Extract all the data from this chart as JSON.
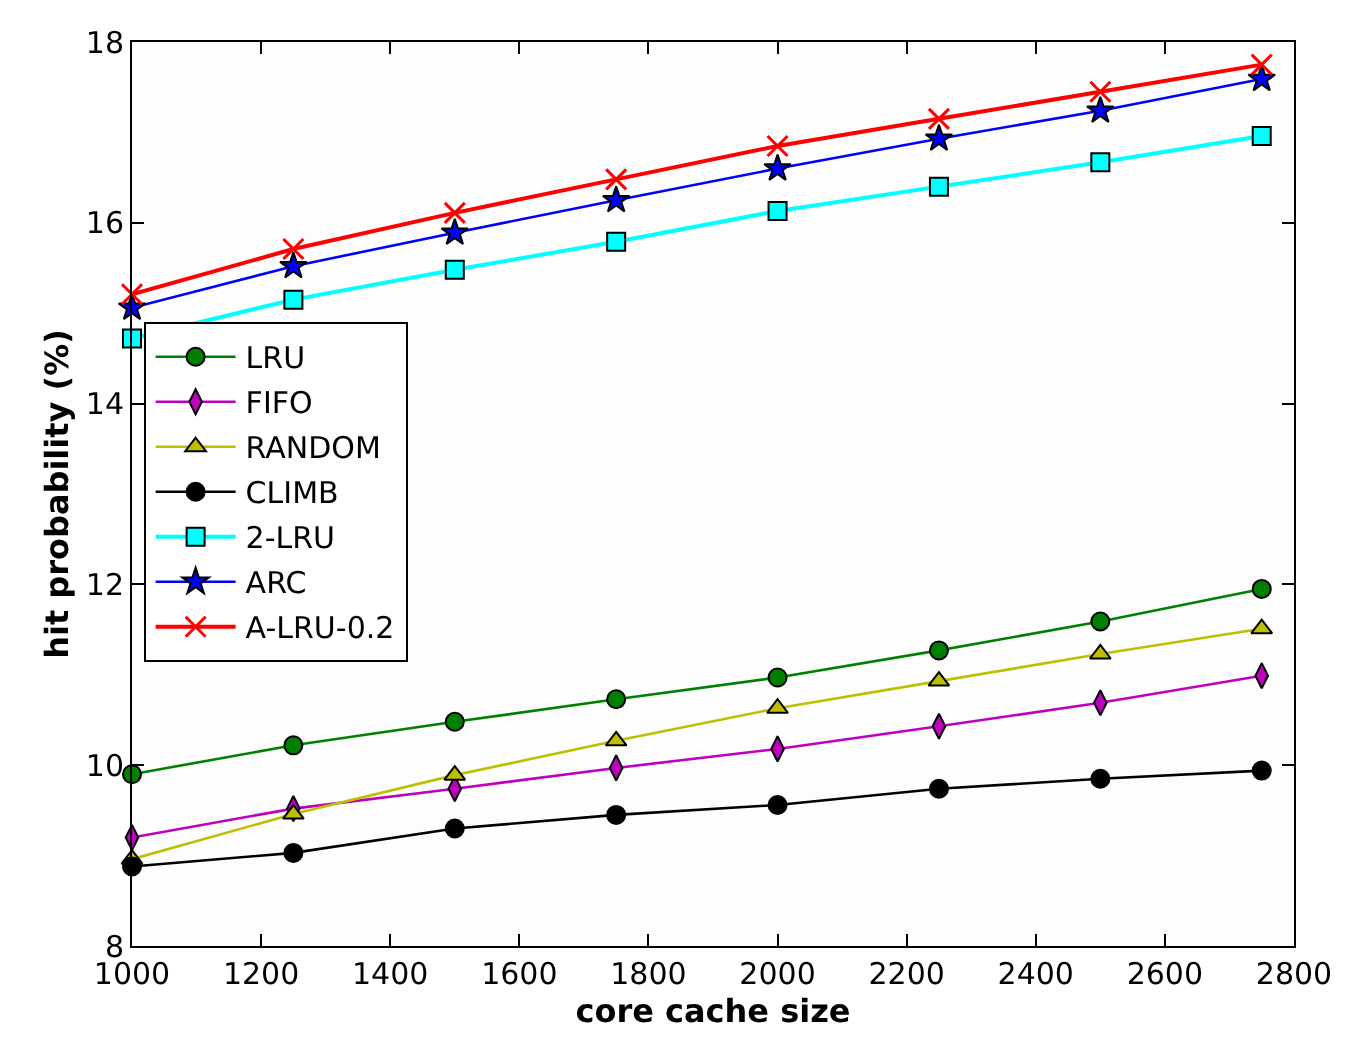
{
  "chart_data": {
    "type": "line",
    "xlabel": "core cache size",
    "ylabel": "hit probability (%)",
    "x": [
      1000,
      1250,
      1500,
      1750,
      2000,
      2250,
      2500,
      2750
    ],
    "xlim": [
      1000,
      2800
    ],
    "xticks": [
      1000,
      1200,
      1400,
      1600,
      1800,
      2000,
      2200,
      2400,
      2600,
      2800
    ],
    "ylim": [
      8,
      18
    ],
    "yticks": [
      8,
      10,
      12,
      14,
      16,
      18
    ],
    "legend": "left",
    "series": [
      {
        "name": "LRU",
        "color": "#008000",
        "marker": "circle",
        "values": [
          9.9,
          10.22,
          10.48,
          10.73,
          10.97,
          11.27,
          11.59,
          11.95
        ]
      },
      {
        "name": "FIFO",
        "color": "#bf00bf",
        "marker": "diamond",
        "values": [
          9.2,
          9.52,
          9.74,
          9.97,
          10.18,
          10.43,
          10.69,
          10.99
        ]
      },
      {
        "name": "RANDOM",
        "color": "#bfbf00",
        "marker": "triangle",
        "values": [
          8.96,
          9.46,
          9.89,
          10.27,
          10.63,
          10.93,
          11.23,
          11.51
        ]
      },
      {
        "name": "CLIMB",
        "color": "#000000",
        "marker": "circle",
        "values": [
          8.88,
          9.03,
          9.3,
          9.45,
          9.56,
          9.74,
          9.85,
          9.94
        ]
      },
      {
        "name": "2-LRU",
        "color": "#00ffff",
        "marker": "square",
        "values": [
          14.72,
          15.15,
          15.48,
          15.79,
          16.13,
          16.4,
          16.67,
          16.96
        ]
      },
      {
        "name": "ARC",
        "color": "#0000ff",
        "marker": "star",
        "values": [
          15.06,
          15.52,
          15.89,
          16.25,
          16.6,
          16.93,
          17.24,
          17.59
        ]
      },
      {
        "name": "A-LRU-0.2",
        "color": "#ff0000",
        "marker": "cross",
        "values": [
          15.21,
          15.71,
          16.11,
          16.48,
          16.85,
          17.15,
          17.45,
          17.75
        ]
      }
    ]
  }
}
